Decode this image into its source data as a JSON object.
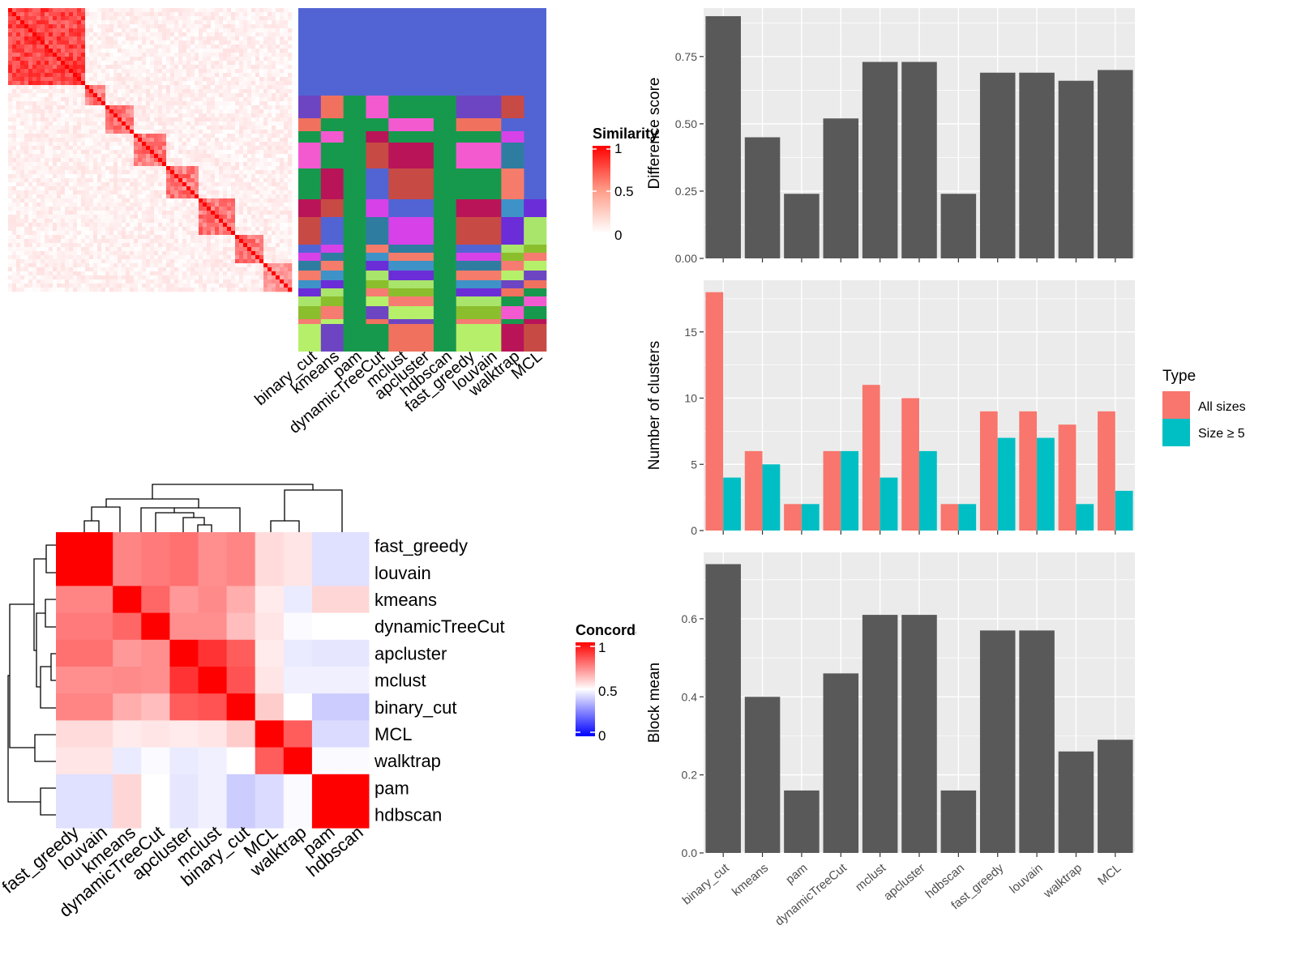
{
  "methods": [
    "binary_cut",
    "kmeans",
    "pam",
    "dynamicTreeCut",
    "mclust",
    "apcluster",
    "hdbscan",
    "fast_greedy",
    "louvain",
    "walktrap",
    "MCL"
  ],
  "similarity_legend": {
    "title": "Similarity",
    "ticks": [
      "1",
      "0.5",
      "0"
    ]
  },
  "concordance_legend": {
    "title": "Concordance",
    "ticks": [
      "1",
      "0.5",
      "0"
    ]
  },
  "concordance_order": [
    "fast_greedy",
    "louvain",
    "kmeans",
    "dynamicTreeCut",
    "apcluster",
    "mclust",
    "binary_cut",
    "MCL",
    "walktrap",
    "pam",
    "hdbscan"
  ],
  "concordance_matrix": [
    [
      1.0,
      1.0,
      0.74,
      0.76,
      0.78,
      0.72,
      0.74,
      0.57,
      0.55,
      0.44,
      0.44
    ],
    [
      1.0,
      1.0,
      0.74,
      0.76,
      0.78,
      0.72,
      0.74,
      0.57,
      0.55,
      0.44,
      0.44
    ],
    [
      0.74,
      0.74,
      1.0,
      0.8,
      0.7,
      0.73,
      0.66,
      0.54,
      0.46,
      0.58,
      0.58
    ],
    [
      0.76,
      0.76,
      0.8,
      1.0,
      0.72,
      0.72,
      0.63,
      0.55,
      0.49,
      0.5,
      0.5
    ],
    [
      0.78,
      0.78,
      0.7,
      0.72,
      1.0,
      0.9,
      0.82,
      0.54,
      0.46,
      0.45,
      0.45
    ],
    [
      0.72,
      0.72,
      0.73,
      0.72,
      0.9,
      1.0,
      0.84,
      0.55,
      0.47,
      0.47,
      0.47
    ],
    [
      0.74,
      0.74,
      0.66,
      0.63,
      0.82,
      0.84,
      1.0,
      0.6,
      0.5,
      0.4,
      0.4
    ],
    [
      0.57,
      0.57,
      0.54,
      0.55,
      0.54,
      0.55,
      0.6,
      1.0,
      0.82,
      0.43,
      0.43
    ],
    [
      0.55,
      0.55,
      0.46,
      0.49,
      0.46,
      0.47,
      0.5,
      0.82,
      1.0,
      0.49,
      0.49
    ],
    [
      0.44,
      0.44,
      0.58,
      0.5,
      0.45,
      0.47,
      0.4,
      0.43,
      0.49,
      1.0,
      1.0
    ],
    [
      0.44,
      0.44,
      0.58,
      0.5,
      0.45,
      0.47,
      0.4,
      0.43,
      0.49,
      1.0,
      1.0
    ]
  ],
  "chart_data": [
    {
      "type": "bar",
      "categories": [
        "binary_cut",
        "kmeans",
        "pam",
        "dynamicTreeCut",
        "mclust",
        "apcluster",
        "hdbscan",
        "fast_greedy",
        "louvain",
        "walktrap",
        "MCL"
      ],
      "values": [
        0.9,
        0.45,
        0.24,
        0.52,
        0.73,
        0.73,
        0.24,
        0.69,
        0.69,
        0.66,
        0.7
      ],
      "title": "",
      "xlabel": "",
      "ylabel": "Difference score",
      "ylim": [
        0,
        0.93
      ],
      "yticks": [
        "0.00",
        "0.25",
        "0.50",
        "0.75"
      ],
      "grid": true
    },
    {
      "type": "bar",
      "categories": [
        "binary_cut",
        "kmeans",
        "pam",
        "dynamicTreeCut",
        "mclust",
        "apcluster",
        "hdbscan",
        "fast_greedy",
        "louvain",
        "walktrap",
        "MCL"
      ],
      "series": [
        {
          "name": "All sizes",
          "values": [
            18,
            6,
            2,
            6,
            11,
            10,
            2,
            9,
            9,
            8,
            9
          ]
        },
        {
          "name": "Size ≥ 5",
          "values": [
            4,
            5,
            2,
            6,
            4,
            6,
            2,
            7,
            7,
            2,
            3
          ]
        }
      ],
      "title": "",
      "xlabel": "",
      "ylabel": "Number of clusters",
      "ylim": [
        0,
        18.9
      ],
      "yticks": [
        "0",
        "5",
        "10",
        "15"
      ],
      "grid": true,
      "legend": {
        "title": "Type",
        "position": "right",
        "colors": [
          "#F8766D",
          "#00BFC4"
        ]
      }
    },
    {
      "type": "bar",
      "categories": [
        "binary_cut",
        "kmeans",
        "pam",
        "dynamicTreeCut",
        "mclust",
        "apcluster",
        "hdbscan",
        "fast_greedy",
        "louvain",
        "walktrap",
        "MCL"
      ],
      "values": [
        0.74,
        0.4,
        0.16,
        0.46,
        0.61,
        0.61,
        0.16,
        0.57,
        0.57,
        0.26,
        0.29
      ],
      "title": "",
      "xlabel": "",
      "ylabel": "Block mean",
      "ylim": [
        0,
        0.77
      ],
      "yticks": [
        "0.0",
        "0.2",
        "0.4",
        "0.6"
      ],
      "grid": true
    }
  ],
  "colors": {
    "bar": "#595959",
    "panel": "#EBEBEB",
    "grid": "#FFFFFF",
    "all_sizes": "#F8766D",
    "size_ge_5": "#00BFC4",
    "heat_high": "#FF0000",
    "heat_mid": "#FFFFFF",
    "heat_low": "#0000FF"
  }
}
